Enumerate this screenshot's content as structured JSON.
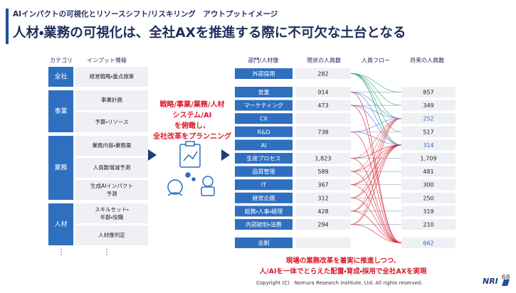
{
  "header": {
    "kicker": "AIインパクトの可視化とリソースシフト/リスキリング　アウトプットイメージ",
    "title": "人材・業務の可視化は、全社AXを推進する際に不可欠な土台となる"
  },
  "input_table": {
    "headers": [
      "カテゴリ",
      "インプット情報"
    ],
    "groups": [
      {
        "category": "全社",
        "inputs": [
          "経営戦略・重点施策"
        ]
      },
      {
        "category": "事業",
        "inputs": [
          "事業計画",
          "予算・リソース"
        ]
      },
      {
        "category": "業務",
        "inputs": [
          "業務内容・業務量",
          "人員数増減予測",
          "生成AIインパクト予測"
        ]
      },
      {
        "category": "人材",
        "inputs": [
          "スキルセット・年齢・役職",
          "人材像判定"
        ]
      }
    ],
    "continuation": "⋮"
  },
  "planning_text": [
    "戦略/事業/業務/人材",
    "システム/AI",
    "を俯瞰し、",
    "全社改革をプランニング"
  ],
  "headcount_table": {
    "headers": [
      "部門/人材像",
      "現状の人員数",
      "人員フロー",
      "将来の人員数"
    ],
    "rows": [
      {
        "dept": "外部採用",
        "current": "282",
        "future": null
      },
      {
        "dept": "営業",
        "current": "914",
        "future": "857"
      },
      {
        "dept": "マーケティング",
        "current": "473",
        "future": "349"
      },
      {
        "dept": "CX",
        "current": null,
        "future": "252"
      },
      {
        "dept": "R&D",
        "current": "738",
        "future": "517"
      },
      {
        "dept": "AI",
        "current": null,
        "future": "314"
      },
      {
        "dept": "生産プロセス",
        "current": "1,823",
        "future": "1,709"
      },
      {
        "dept": "品質管理",
        "current": "589",
        "future": "481"
      },
      {
        "dept": "IT",
        "current": "367",
        "future": "300"
      },
      {
        "dept": "経営企画",
        "current": "312",
        "future": "250"
      },
      {
        "dept": "総務・人事・経理",
        "current": "428",
        "future": "319"
      },
      {
        "dept": "内部統制・法務",
        "current": "294",
        "future": "210"
      },
      {
        "dept": "余剰",
        "current": null,
        "future": "662"
      }
    ]
  },
  "conclusion": [
    "現場の業務改革を着実に推進しつつ、",
    "人/AIを一体でとらえた配置・育成・採用で全社AXを実現"
  ],
  "footer": {
    "copyright": "Copyright (C)　Nomura Research Institute, Ltd. All rights reserved.",
    "logo": "NRI",
    "page": "68"
  }
}
